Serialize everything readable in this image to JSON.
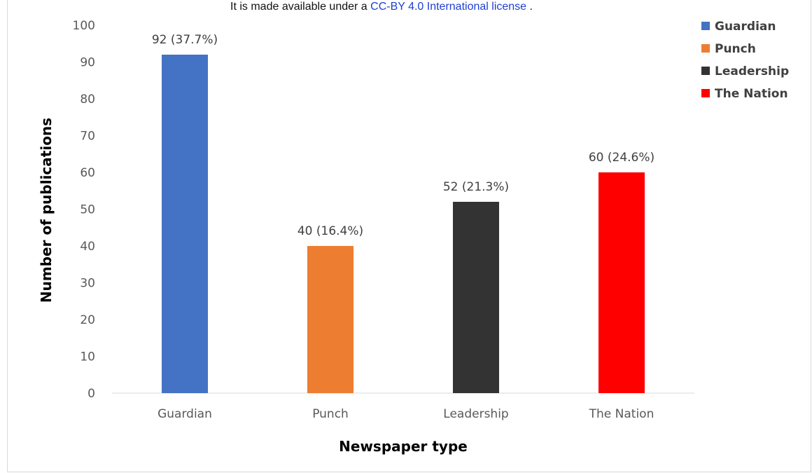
{
  "license": {
    "prefix": "It is made available under a ",
    "link_text": "CC-BY 4.0 International license",
    "suffix": " ."
  },
  "chart_data": {
    "type": "bar",
    "categories": [
      "Guardian",
      "Punch",
      "Leadership",
      "The Nation"
    ],
    "values": [
      92,
      40,
      52,
      60
    ],
    "data_labels": [
      "92 (37.7%)",
      "40 (16.4%)",
      "52 (21.3%)",
      "60 (24.6%)"
    ],
    "colors": [
      "#4472c4",
      "#ed7d31",
      "#333333",
      "#ff0000"
    ],
    "title": "",
    "xlabel": "Newspaper type",
    "ylabel": "Number of publications",
    "ylim": [
      0,
      100
    ],
    "yticks": [
      0,
      10,
      20,
      30,
      40,
      50,
      60,
      70,
      80,
      90,
      100
    ],
    "grid": false,
    "legend": {
      "position": "top-right",
      "entries": [
        "Guardian",
        "Punch",
        "Leadership",
        "The Nation"
      ]
    }
  }
}
